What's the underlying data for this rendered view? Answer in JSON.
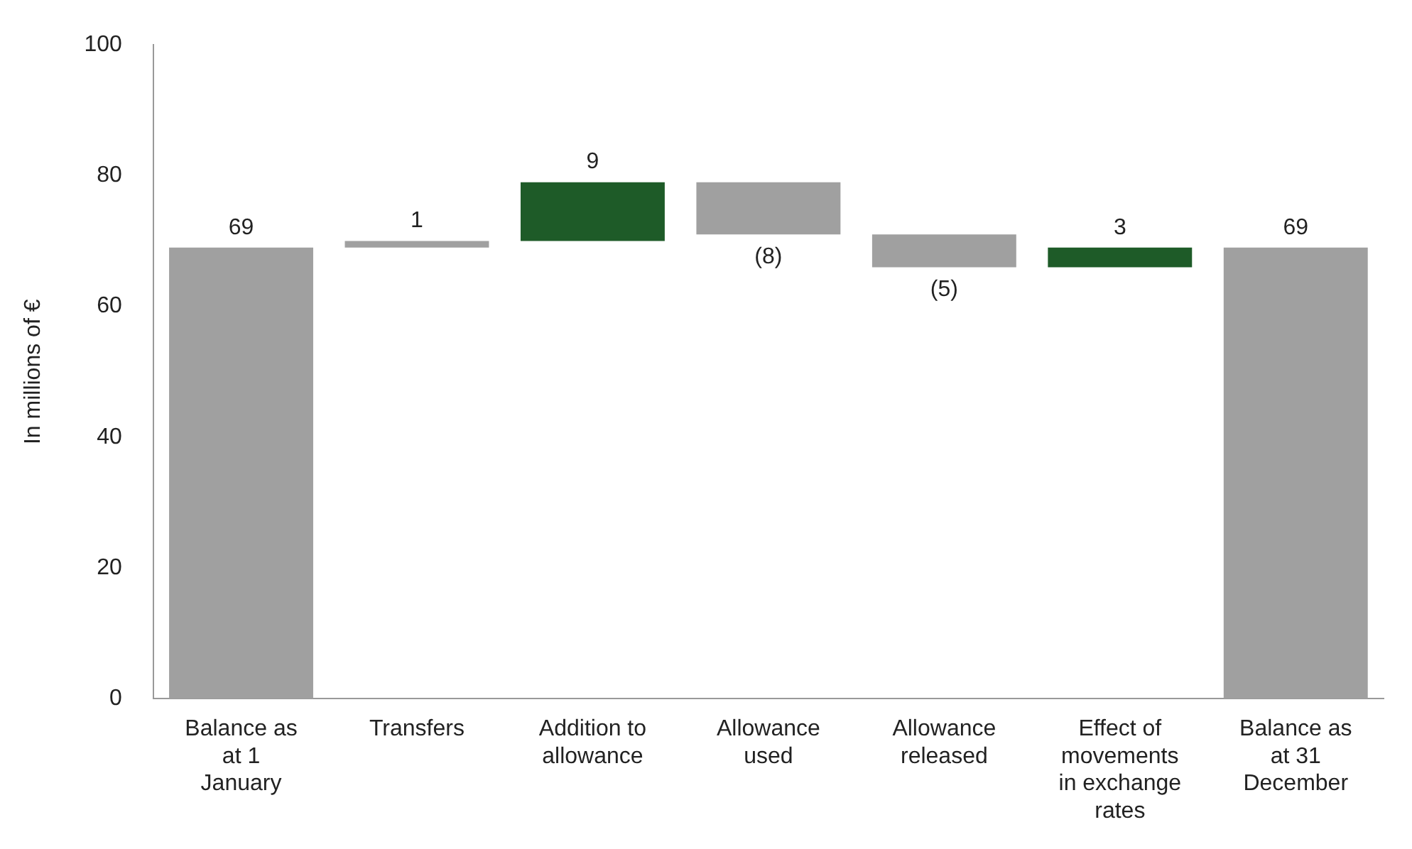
{
  "chart_data": {
    "type": "bar",
    "ylabel": "In millions of €",
    "categories": [
      "Balance as at 1 January",
      "Transfers",
      "Addition to allowance",
      "Allowance used",
      "Allowance released",
      "Effect of movements in exchange rates",
      "Balance as at 31 December"
    ],
    "values": [
      69,
      1,
      9,
      -8,
      -5,
      3,
      69
    ],
    "base": [
      0,
      69,
      70,
      79,
      71,
      66,
      0
    ],
    "colors": [
      "#a0a0a0",
      "#a0a0a0",
      "#1e5b28",
      "#a0a0a0",
      "#a0a0a0",
      "#1e5b28",
      "#a0a0a0"
    ],
    "value_labels": [
      "69",
      "1",
      "9",
      "(8)",
      "(5)",
      "3",
      "69"
    ],
    "ylim": [
      0,
      100
    ],
    "yticks": [
      0,
      20,
      40,
      60,
      80,
      100
    ],
    "grid": false,
    "legend": false
  }
}
